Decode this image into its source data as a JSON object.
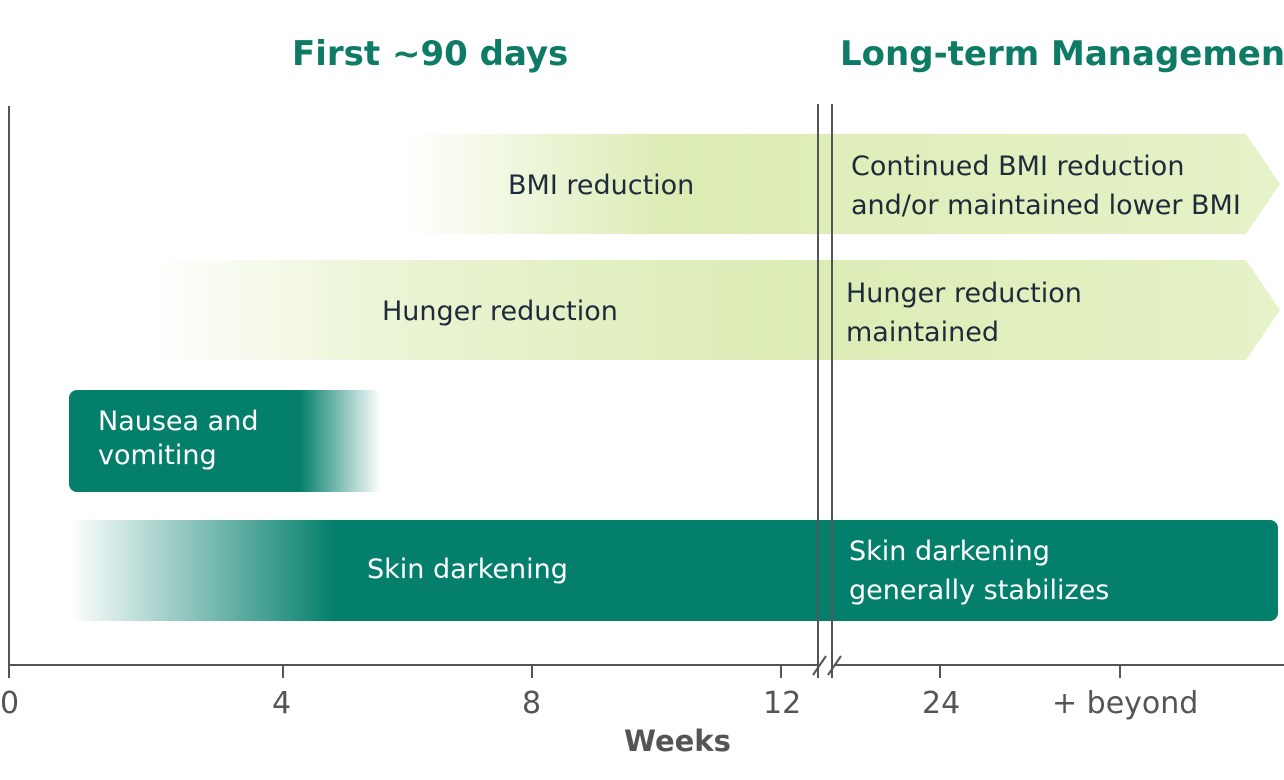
{
  "header": {
    "first_phase": "First ~90 days",
    "long_term": "Long-term Management"
  },
  "colors": {
    "light_bar": "#dcecb4",
    "dark_bar": "#047f6c",
    "heading": "#0e7b66",
    "axis": "#555555"
  },
  "chart_data": {
    "type": "bar",
    "subtype": "timeline",
    "xlabel": "Weeks",
    "ticks": [
      "0",
      "4",
      "8",
      "12",
      "24",
      "+ beyond"
    ],
    "axis_break_after": "12",
    "phases": [
      "First ~90 days",
      "Long-term Management"
    ],
    "series": [
      {
        "label": "BMI reduction",
        "long_term_label": "Continued BMI reduction and/or maintained lower BMI",
        "start_week": 6,
        "end": "beyond",
        "fade_in": true,
        "color": "light"
      },
      {
        "label": "Hunger reduction",
        "long_term_label": "Hunger reduction maintained",
        "start_week": 2,
        "end": "beyond",
        "fade_in": true,
        "color": "light"
      },
      {
        "label": "Nausea and vomiting",
        "start_week": 1,
        "end_week": 5.5,
        "fade_out": true,
        "color": "dark"
      },
      {
        "label": "Skin darkening",
        "long_term_label": "Skin darkening generally stabilizes",
        "start_week": 1,
        "end": "beyond",
        "fade_in": true,
        "color": "dark"
      }
    ]
  }
}
